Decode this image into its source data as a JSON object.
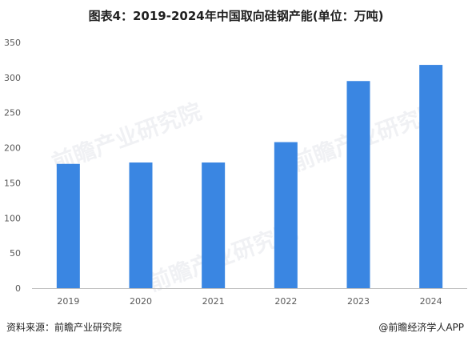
{
  "title": "图表4：2019-2024年中国取向硅钢产能(单位：万吨)",
  "source": "资料来源：前瞻产业研究院",
  "credit": "@前瞻经济学人APP",
  "watermark": "前瞻产业研究院",
  "colors": {
    "bar": "#3a86e2",
    "axis": "#bfbfbf",
    "text": "#595959"
  },
  "chart_data": {
    "type": "bar",
    "categories": [
      "2019",
      "2020",
      "2021",
      "2022",
      "2023",
      "2024"
    ],
    "values": [
      177,
      179,
      179,
      208,
      295,
      318
    ],
    "ylim": [
      0,
      350
    ],
    "yticks": [
      0,
      50,
      100,
      150,
      200,
      250,
      300,
      350
    ],
    "grid": false
  }
}
